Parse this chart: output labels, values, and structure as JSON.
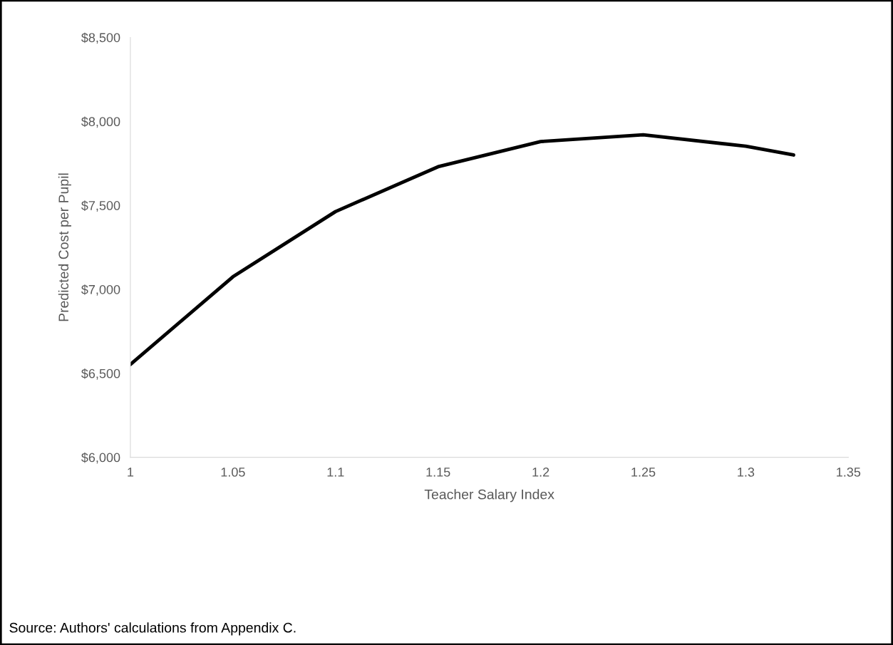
{
  "chart_data": {
    "type": "line",
    "xlabel": "Teacher Salary Index",
    "ylabel": "Predicted Cost per Pupil",
    "annotations": [
      "Source: Authors' calculations from Appendix C."
    ],
    "x": [
      1,
      1.05,
      1.1,
      1.15,
      1.2,
      1.25,
      1.3,
      1.3233
    ],
    "series": [
      {
        "color": "#000000",
        "values": [
          6553,
          7075,
          7463,
          7730,
          7880,
          7920,
          7852,
          7800
        ]
      }
    ],
    "xlim": [
      1,
      1.35
    ],
    "xticks": [
      1,
      1.05,
      1.1,
      1.15,
      1.2,
      1.25,
      1.3,
      1.35
    ],
    "ylim": [
      6000,
      8500
    ],
    "yticks": [
      {
        "value": 6000,
        "label": "$6,000"
      },
      {
        "value": 6500,
        "label": "$6,500"
      },
      {
        "value": 7000,
        "label": "$7,000"
      },
      {
        "value": 7500,
        "label": "$7,500"
      },
      {
        "value": 8000,
        "label": "$8,000"
      },
      {
        "value": 8500,
        "label": "$8,500"
      }
    ],
    "grid": false,
    "legend": false,
    "marker": "none",
    "line_style": "solid"
  }
}
